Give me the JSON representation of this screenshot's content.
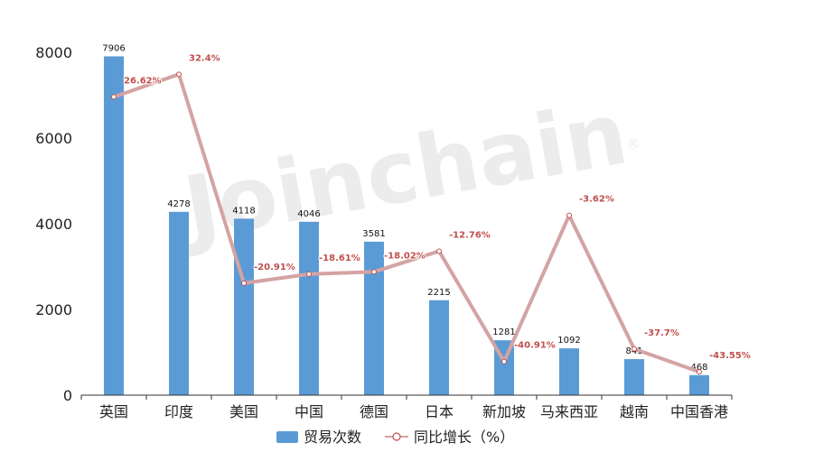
{
  "watermark": "Joinchain",
  "watermark_mark": "®",
  "chart_data": {
    "type": "bar",
    "categories": [
      "英国",
      "印度",
      "美国",
      "中国",
      "德国",
      "日本",
      "新加坡",
      "马来西亚",
      "越南",
      "中国香港"
    ],
    "series": [
      {
        "name": "贸易次数",
        "type": "bar",
        "values": [
          7906,
          4278,
          4118,
          4046,
          3581,
          2215,
          1281,
          1092,
          841,
          468
        ],
        "labels": [
          "7906",
          "4278",
          "4118",
          "4046",
          "3581",
          "2215",
          "1281",
          "1092",
          "841",
          "468"
        ],
        "color": "#5b9bd5"
      },
      {
        "name": "同比增长（%）",
        "type": "line",
        "values": [
          26.62,
          32.4,
          -20.91,
          -18.61,
          -18.02,
          -12.76,
          -40.91,
          -3.62,
          -37.7,
          -43.55
        ],
        "labels": [
          "26.62%",
          "32.4%",
          "-20.91%",
          "-18.61%",
          "-18.02%",
          "-12.76%",
          "-40.91%",
          "-3.62%",
          "-37.7%",
          "-43.55%"
        ],
        "color": "#d4a3a3",
        "label_color": "#c0504d"
      }
    ],
    "y_ticks": [
      "0",
      "2000",
      "4000",
      "6000",
      "8000"
    ],
    "ylim": [
      0,
      8000
    ],
    "y2lim": [
      -49.5,
      38
    ],
    "grid": false,
    "legend_position": "bottom-center"
  }
}
